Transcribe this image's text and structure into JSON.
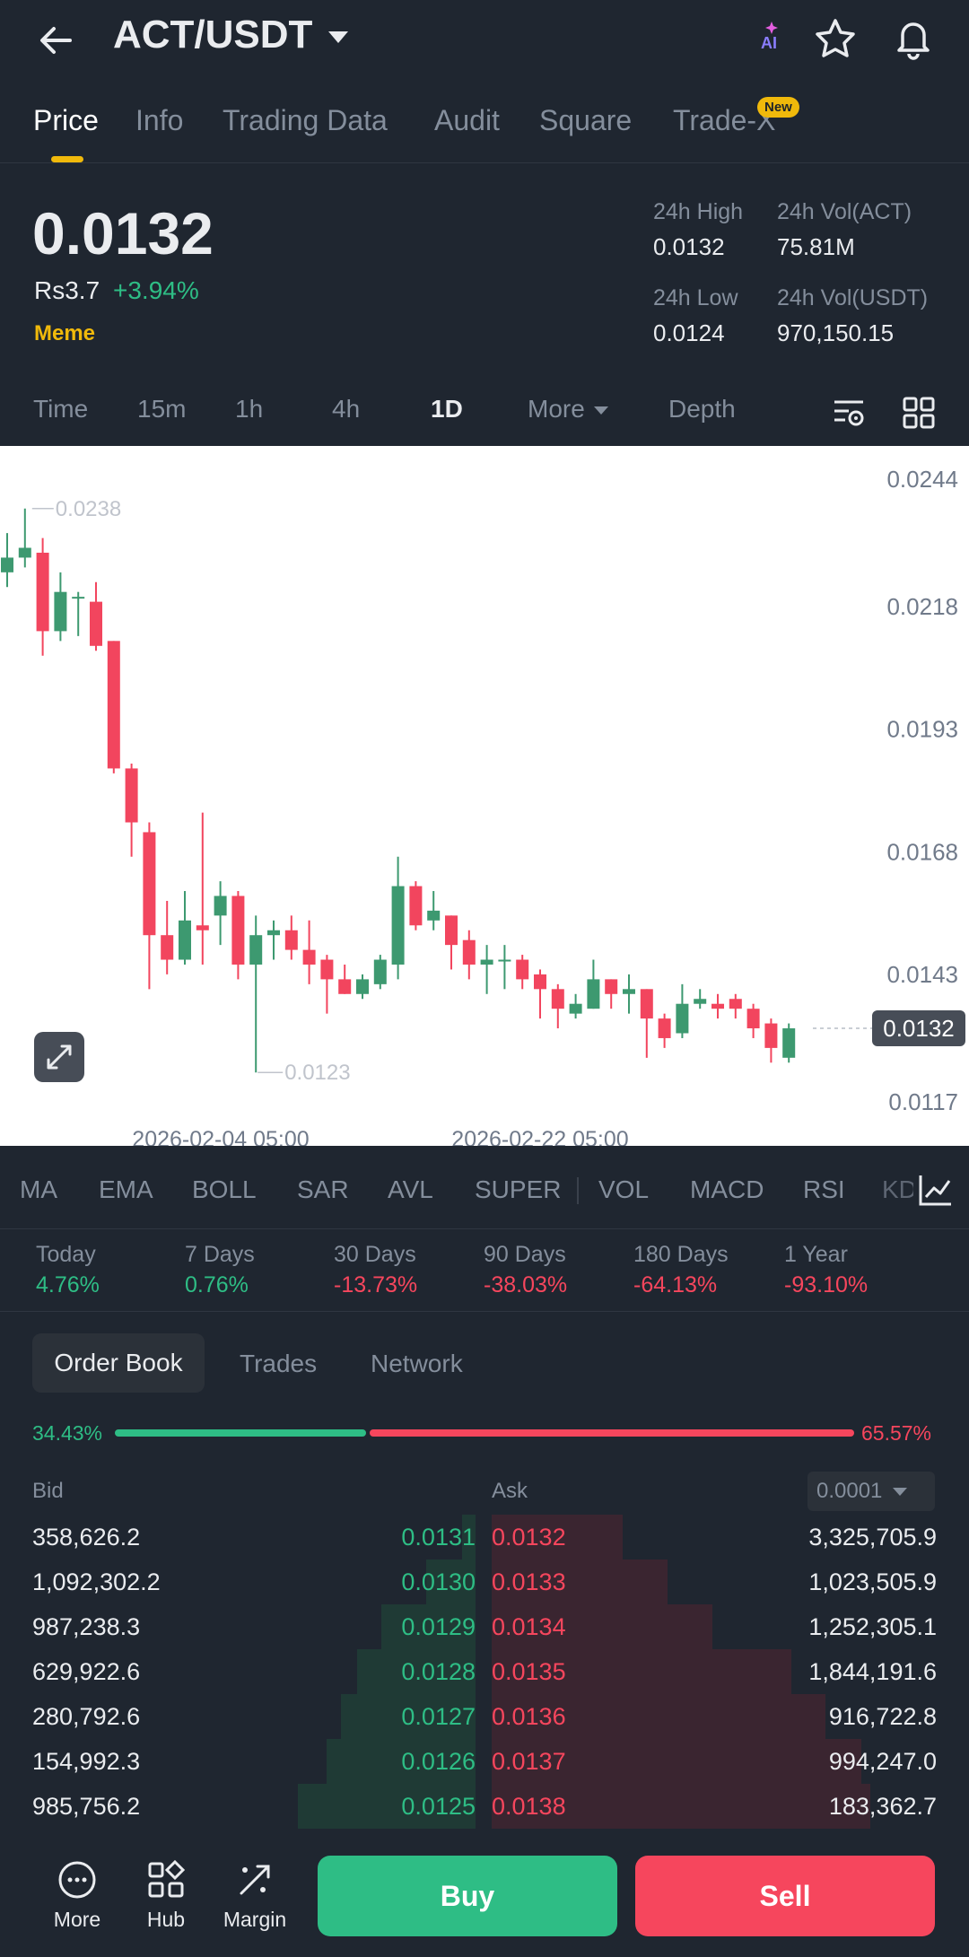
{
  "header": {
    "pair": "ACT/USDT",
    "ai_label": "AI"
  },
  "tabs": [
    {
      "label": "Price",
      "active": true
    },
    {
      "label": "Info"
    },
    {
      "label": "Trading Data"
    },
    {
      "label": "Audit"
    },
    {
      "label": "Square"
    },
    {
      "label": "Trade-X",
      "badge": "New"
    }
  ],
  "price": {
    "last": "0.0132",
    "fiat": "Rs3.7",
    "change": "+3.94%",
    "tag": "Meme"
  },
  "stats": {
    "high_label": "24h High",
    "high_value": "0.0132",
    "vol_act_label": "24h Vol(ACT)",
    "vol_act_value": "75.81M",
    "low_label": "24h Low",
    "low_value": "0.0124",
    "vol_usdt_label": "24h Vol(USDT)",
    "vol_usdt_value": "970,150.15"
  },
  "intervals": {
    "time": "Time",
    "m15": "15m",
    "h1": "1h",
    "h4": "4h",
    "d1": "1D",
    "more": "More",
    "depth": "Depth"
  },
  "chart_data": {
    "type": "candlestick",
    "y_ticks": [
      "0.0244",
      "0.0218",
      "0.0193",
      "0.0168",
      "0.0143",
      "0.0117"
    ],
    "ylim": [
      0.0117,
      0.0244
    ],
    "x_labels": [
      "2026-02-04 05:00",
      "2026-02-22 05:00"
    ],
    "high_annotation": "0.0238",
    "low_annotation": "0.0123",
    "current_price_label": "0.0132",
    "candles": [
      {
        "o": 0.0225,
        "h": 0.0233,
        "l": 0.0222,
        "c": 0.0228
      },
      {
        "o": 0.0228,
        "h": 0.0238,
        "l": 0.0226,
        "c": 0.023
      },
      {
        "o": 0.0229,
        "h": 0.0232,
        "l": 0.0208,
        "c": 0.0213
      },
      {
        "o": 0.0213,
        "h": 0.0225,
        "l": 0.0211,
        "c": 0.0221
      },
      {
        "o": 0.022,
        "h": 0.0221,
        "l": 0.0212,
        "c": 0.022
      },
      {
        "o": 0.0219,
        "h": 0.0223,
        "l": 0.0209,
        "c": 0.021
      },
      {
        "o": 0.0211,
        "h": 0.0211,
        "l": 0.0184,
        "c": 0.0185
      },
      {
        "o": 0.0185,
        "h": 0.0186,
        "l": 0.0167,
        "c": 0.0174
      },
      {
        "o": 0.0172,
        "h": 0.0174,
        "l": 0.014,
        "c": 0.0151
      },
      {
        "o": 0.0151,
        "h": 0.0158,
        "l": 0.0143,
        "c": 0.0146
      },
      {
        "o": 0.0146,
        "h": 0.016,
        "l": 0.0145,
        "c": 0.0154
      },
      {
        "o": 0.0153,
        "h": 0.0176,
        "l": 0.0145,
        "c": 0.0152
      },
      {
        "o": 0.0155,
        "h": 0.0162,
        "l": 0.0149,
        "c": 0.0159
      },
      {
        "o": 0.0159,
        "h": 0.016,
        "l": 0.0142,
        "c": 0.0145
      },
      {
        "o": 0.0145,
        "h": 0.0155,
        "l": 0.0123,
        "c": 0.0151
      },
      {
        "o": 0.0151,
        "h": 0.0154,
        "l": 0.0146,
        "c": 0.0152
      },
      {
        "o": 0.0152,
        "h": 0.0155,
        "l": 0.0146,
        "c": 0.0148
      },
      {
        "o": 0.0148,
        "h": 0.0154,
        "l": 0.0141,
        "c": 0.0145
      },
      {
        "o": 0.0146,
        "h": 0.0147,
        "l": 0.0135,
        "c": 0.0142
      },
      {
        "o": 0.0142,
        "h": 0.0145,
        "l": 0.0139,
        "c": 0.0139
      },
      {
        "o": 0.0139,
        "h": 0.0143,
        "l": 0.0138,
        "c": 0.0142
      },
      {
        "o": 0.0141,
        "h": 0.0147,
        "l": 0.014,
        "c": 0.0146
      },
      {
        "o": 0.0145,
        "h": 0.0167,
        "l": 0.0142,
        "c": 0.0161
      },
      {
        "o": 0.0161,
        "h": 0.0162,
        "l": 0.0152,
        "c": 0.0153
      },
      {
        "o": 0.0154,
        "h": 0.016,
        "l": 0.0152,
        "c": 0.0156
      },
      {
        "o": 0.0155,
        "h": 0.0155,
        "l": 0.0144,
        "c": 0.0149
      },
      {
        "o": 0.015,
        "h": 0.0152,
        "l": 0.0142,
        "c": 0.0145
      },
      {
        "o": 0.0145,
        "h": 0.0149,
        "l": 0.0139,
        "c": 0.0146
      },
      {
        "o": 0.0146,
        "h": 0.0149,
        "l": 0.014,
        "c": 0.0146
      },
      {
        "o": 0.0146,
        "h": 0.0147,
        "l": 0.014,
        "c": 0.0142
      },
      {
        "o": 0.0143,
        "h": 0.0144,
        "l": 0.0134,
        "c": 0.014
      },
      {
        "o": 0.014,
        "h": 0.0141,
        "l": 0.0132,
        "c": 0.0136
      },
      {
        "o": 0.0135,
        "h": 0.0139,
        "l": 0.0134,
        "c": 0.0137
      },
      {
        "o": 0.0136,
        "h": 0.0146,
        "l": 0.0136,
        "c": 0.0142
      },
      {
        "o": 0.0142,
        "h": 0.0142,
        "l": 0.0136,
        "c": 0.0139
      },
      {
        "o": 0.0139,
        "h": 0.0143,
        "l": 0.0135,
        "c": 0.014
      },
      {
        "o": 0.014,
        "h": 0.014,
        "l": 0.0126,
        "c": 0.0134
      },
      {
        "o": 0.0134,
        "h": 0.0135,
        "l": 0.0128,
        "c": 0.013
      },
      {
        "o": 0.0131,
        "h": 0.0141,
        "l": 0.013,
        "c": 0.0137
      },
      {
        "o": 0.0137,
        "h": 0.014,
        "l": 0.0136,
        "c": 0.0138
      },
      {
        "o": 0.0137,
        "h": 0.0139,
        "l": 0.0134,
        "c": 0.0136
      },
      {
        "o": 0.0138,
        "h": 0.0139,
        "l": 0.0134,
        "c": 0.0136
      },
      {
        "o": 0.0136,
        "h": 0.0137,
        "l": 0.013,
        "c": 0.0132
      },
      {
        "o": 0.0133,
        "h": 0.0134,
        "l": 0.0125,
        "c": 0.0128
      },
      {
        "o": 0.0126,
        "h": 0.0133,
        "l": 0.0125,
        "c": 0.0132
      }
    ]
  },
  "indicators": [
    "MA",
    "EMA",
    "BOLL",
    "SAR",
    "AVL",
    "SUPER",
    "VOL",
    "MACD",
    "RSI",
    "KD"
  ],
  "periods": [
    {
      "label": "Today",
      "value": "4.76%",
      "color": "#2ebd85"
    },
    {
      "label": "7 Days",
      "value": "0.76%",
      "color": "#2ebd85"
    },
    {
      "label": "30 Days",
      "value": "-13.73%",
      "color": "#f6465d"
    },
    {
      "label": "90 Days",
      "value": "-38.03%",
      "color": "#f6465d"
    },
    {
      "label": "180 Days",
      "value": "-64.13%",
      "color": "#f6465d"
    },
    {
      "label": "1 Year",
      "value": "-93.10%",
      "color": "#f6465d"
    }
  ],
  "orderbook": {
    "tabs": [
      "Order Book",
      "Trades",
      "Network"
    ],
    "bid_ratio": "34.43%",
    "ask_ratio": "65.57%",
    "bid_label": "Bid",
    "ask_label": "Ask",
    "precision": "0.0001",
    "rows": [
      {
        "bid_qty": "358,626.2",
        "bid_price": "0.0131",
        "ask_price": "0.0132",
        "ask_qty": "3,325,705.9"
      },
      {
        "bid_qty": "1,092,302.2",
        "bid_price": "0.0130",
        "ask_price": "0.0133",
        "ask_qty": "1,023,505.9"
      },
      {
        "bid_qty": "987,238.3",
        "bid_price": "0.0129",
        "ask_price": "0.0134",
        "ask_qty": "1,252,305.1"
      },
      {
        "bid_qty": "629,922.6",
        "bid_price": "0.0128",
        "ask_price": "0.0135",
        "ask_qty": "1,844,191.6"
      },
      {
        "bid_qty": "280,792.6",
        "bid_price": "0.0127",
        "ask_price": "0.0136",
        "ask_qty": "916,722.8"
      },
      {
        "bid_qty": "154,992.3",
        "bid_price": "0.0126",
        "ask_price": "0.0137",
        "ask_qty": "994,247.0"
      },
      {
        "bid_qty": "985,756.2",
        "bid_price": "0.0125",
        "ask_price": "0.0138",
        "ask_qty": "183,362.7"
      }
    ]
  },
  "bottom": {
    "more": "More",
    "hub": "Hub",
    "margin": "Margin",
    "buy": "Buy",
    "sell": "Sell"
  }
}
